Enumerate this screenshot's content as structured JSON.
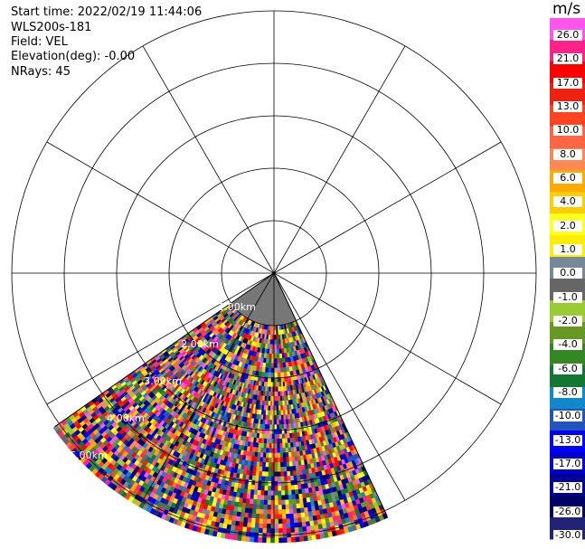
{
  "info": {
    "start_time": "Start time: 2022/02/19 11:44:06",
    "station": "WLS200s-181",
    "field": "Field: VEL",
    "elevation": "Elevation(deg): -0.00",
    "nrays": "NRays: 45"
  },
  "chart_data": {
    "type": "heatmap",
    "projection": "polar-ppi",
    "field": "VEL",
    "units": "m/s",
    "nrays": 45,
    "azimuth_start_deg": 155,
    "azimuth_end_deg": 235,
    "max_range_km": 5.1,
    "no_data_range_km": 1.0,
    "plot_max_range_km": 5.0,
    "range_rings_km": [
      1.0,
      2.0,
      3.0,
      4.0,
      5.0
    ],
    "range_ring_labels": [
      "1.00km",
      "2.00km",
      "3.00km",
      "4.00km",
      "5.00km"
    ],
    "ring_label_azimuth_deg": 225,
    "spoke_angles_deg": [
      0,
      30,
      60,
      90,
      120,
      150,
      180,
      210,
      240,
      270,
      300,
      330
    ],
    "colorbar": {
      "unit": "m/s",
      "labels": [
        "26.0",
        "21.0",
        "17.0",
        "13.0",
        "10.0",
        "8.0",
        "6.0",
        "4.0",
        "2.0",
        "1.0",
        "0.0",
        "-1.0",
        "-2.0",
        "-4.0",
        "-6.0",
        "-8.0",
        "-10.0",
        "-13.0",
        "-17.0",
        "-21.0",
        "-26.0",
        "-30.0"
      ],
      "colors": [
        "#ff55ee",
        "#ff2288",
        "#ff0000",
        "#ee2211",
        "#ff4422",
        "#ff6644",
        "#ff8855",
        "#ffaa00",
        "#ffcc00",
        "#ffff22",
        "#ffee00",
        "#778899",
        "#666666",
        "#99cc33",
        "#669922",
        "#338822",
        "#117733",
        "#1188cc",
        "#2255bb",
        "#0000ff",
        "#0000cc",
        "#000099",
        "#000066",
        "#222277"
      ]
    }
  }
}
